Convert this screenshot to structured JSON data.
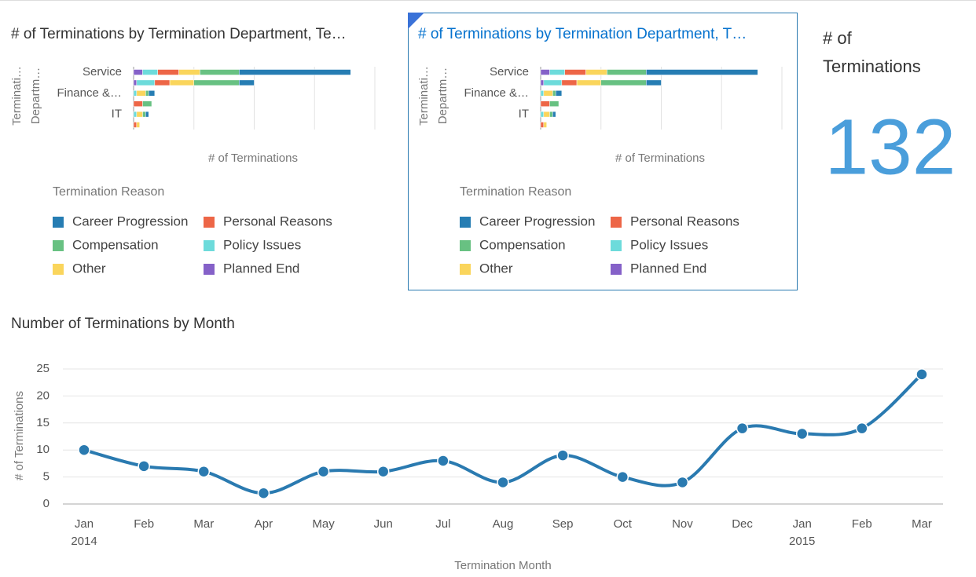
{
  "chart_data": [
    {
      "type": "hbar-stacked",
      "title": "# of Terminations by Termination Department, Te…",
      "ylabel": [
        "Terminati…",
        "Departm…"
      ],
      "xlabel": "# of Terminations",
      "legend_title": "Termination Reason",
      "categories": [
        "Service",
        null,
        "Finance &…",
        null,
        "IT",
        null
      ],
      "xlim": [
        0,
        80
      ],
      "xticks": [
        0,
        20,
        40,
        60,
        80
      ],
      "grid": true,
      "series": [
        {
          "name": "Planned End",
          "color": "#8561c8",
          "values": [
            3,
            1,
            0,
            0,
            0,
            0
          ]
        },
        {
          "name": "Policy Issues",
          "color": "#6ddbdb",
          "values": [
            5,
            6,
            1,
            0,
            1,
            0
          ]
        },
        {
          "name": "Personal Reasons",
          "color": "#ed6647",
          "values": [
            7,
            5,
            0,
            3,
            0,
            1
          ]
        },
        {
          "name": "Other",
          "color": "#fad55c",
          "values": [
            7,
            8,
            3,
            0,
            2,
            1
          ]
        },
        {
          "name": "Compensation",
          "color": "#68c182",
          "values": [
            13,
            15,
            1,
            3,
            1,
            0
          ]
        },
        {
          "name": "Career Progression",
          "color": "#267db3",
          "values": [
            37,
            5,
            2,
            0,
            1,
            0
          ]
        }
      ]
    },
    {
      "type": "hbar-stacked",
      "title": "# of Terminations by Termination Department, T…",
      "ylabel": [
        "Terminati…",
        "Departm…"
      ],
      "xlabel": "# of Terminations",
      "legend_title": "Termination Reason",
      "categories": [
        "Service",
        null,
        "Finance &…",
        null,
        "IT",
        null
      ],
      "xlim": [
        0,
        80
      ],
      "xticks": [
        0,
        20,
        40,
        60,
        80
      ],
      "grid": true,
      "series": [
        {
          "name": "Planned End",
          "color": "#8561c8",
          "values": [
            3,
            1,
            0,
            0,
            0,
            0
          ]
        },
        {
          "name": "Policy Issues",
          "color": "#6ddbdb",
          "values": [
            5,
            6,
            1,
            0,
            1,
            0
          ]
        },
        {
          "name": "Personal Reasons",
          "color": "#ed6647",
          "values": [
            7,
            5,
            0,
            3,
            0,
            1
          ]
        },
        {
          "name": "Other",
          "color": "#fad55c",
          "values": [
            7,
            8,
            3,
            0,
            2,
            1
          ]
        },
        {
          "name": "Compensation",
          "color": "#68c182",
          "values": [
            13,
            15,
            1,
            3,
            1,
            0
          ]
        },
        {
          "name": "Career Progression",
          "color": "#267db3",
          "values": [
            37,
            5,
            2,
            0,
            1,
            0
          ]
        }
      ]
    },
    {
      "type": "line",
      "title": "Number of Terminations by Month",
      "xlabel": "Termination Month",
      "ylabel": "# of Terminations",
      "categories": [
        "Jan",
        "Feb",
        "Mar",
        "Apr",
        "May",
        "Jun",
        "Jul",
        "Aug",
        "Sep",
        "Oct",
        "Nov",
        "Dec",
        "Jan",
        "Feb",
        "Mar"
      ],
      "year_labels": [
        "2014",
        null,
        null,
        null,
        null,
        null,
        null,
        null,
        null,
        null,
        null,
        null,
        "2015",
        null,
        null
      ],
      "values": [
        10,
        7,
        6,
        2,
        6,
        6,
        8,
        4,
        9,
        5,
        4,
        14,
        13,
        14,
        24
      ],
      "color": "#2a7ab0",
      "ylim": [
        0,
        25
      ],
      "yticks": [
        0,
        5,
        10,
        15,
        20,
        25
      ],
      "grid": true
    }
  ],
  "kpi": {
    "label": [
      "# of",
      "Terminations"
    ],
    "value": 132
  }
}
